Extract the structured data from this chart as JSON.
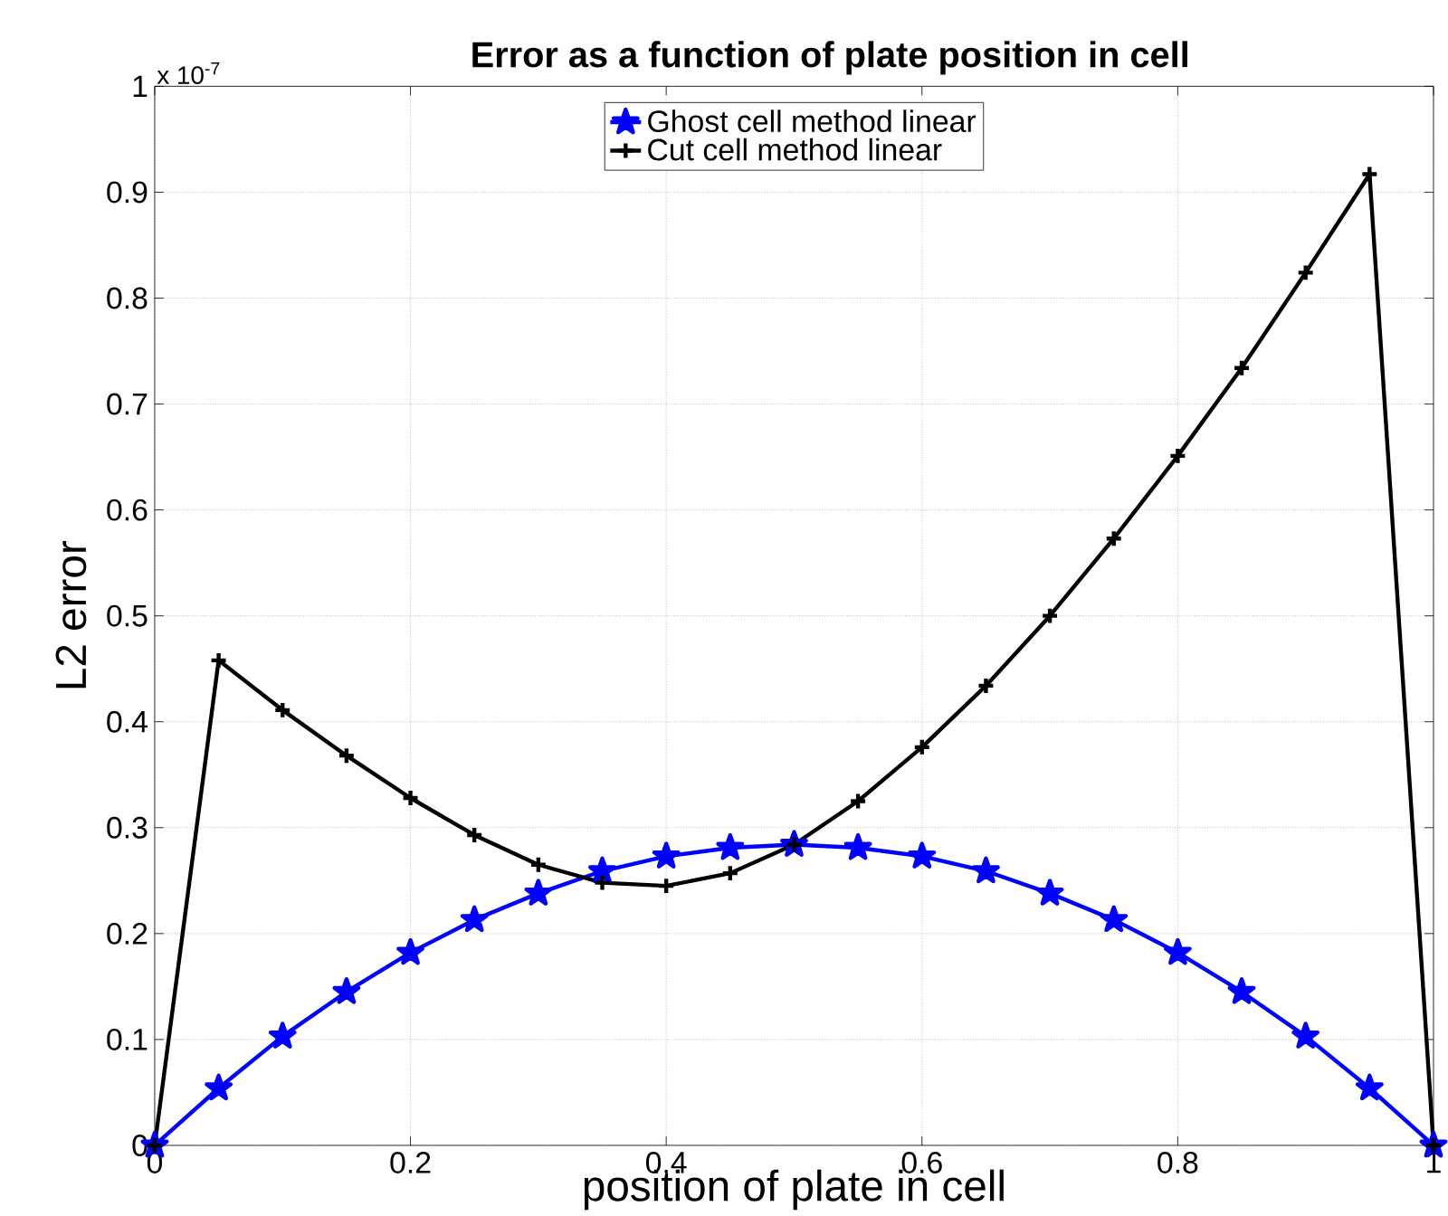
{
  "chart_data": {
    "type": "line",
    "title": "Error as a function of plate position in cell",
    "xlabel": "position of plate in cell",
    "ylabel": "L2 error",
    "x": [
      0,
      0.05,
      0.1,
      0.15,
      0.2,
      0.25,
      0.3,
      0.35,
      0.4,
      0.45,
      0.5,
      0.55,
      0.6,
      0.65,
      0.7,
      0.75,
      0.8,
      0.85,
      0.9,
      0.95,
      1
    ],
    "series": [
      {
        "name": "Ghost cell method linear",
        "color": "#0000ff",
        "marker": "star",
        "values": [
          0,
          0.054,
          0.103,
          0.145,
          0.182,
          0.213,
          0.238,
          0.259,
          0.273,
          0.281,
          0.284,
          0.281,
          0.273,
          0.259,
          0.238,
          0.213,
          0.182,
          0.145,
          0.103,
          0.054,
          0
        ]
      },
      {
        "name": "Cut cell method linear",
        "color": "#000000",
        "marker": "cross",
        "values": [
          0,
          0.458,
          0.411,
          0.368,
          0.328,
          0.293,
          0.265,
          0.248,
          0.245,
          0.257,
          0.284,
          0.325,
          0.376,
          0.434,
          0.5,
          0.573,
          0.651,
          0.734,
          0.824,
          0.917,
          0
        ]
      }
    ],
    "xlim": [
      0,
      1
    ],
    "ylim": [
      0,
      1
    ],
    "xticks": [
      0,
      0.2,
      0.4,
      0.6,
      0.8,
      1
    ],
    "yticks": [
      0,
      0.1,
      0.2,
      0.3,
      0.4,
      0.5,
      0.6,
      0.7,
      0.8,
      0.9,
      1
    ],
    "grid": true,
    "legend": "top",
    "line_style": "solid",
    "annotations": [
      "x 10$^{-7}$"
    ]
  }
}
